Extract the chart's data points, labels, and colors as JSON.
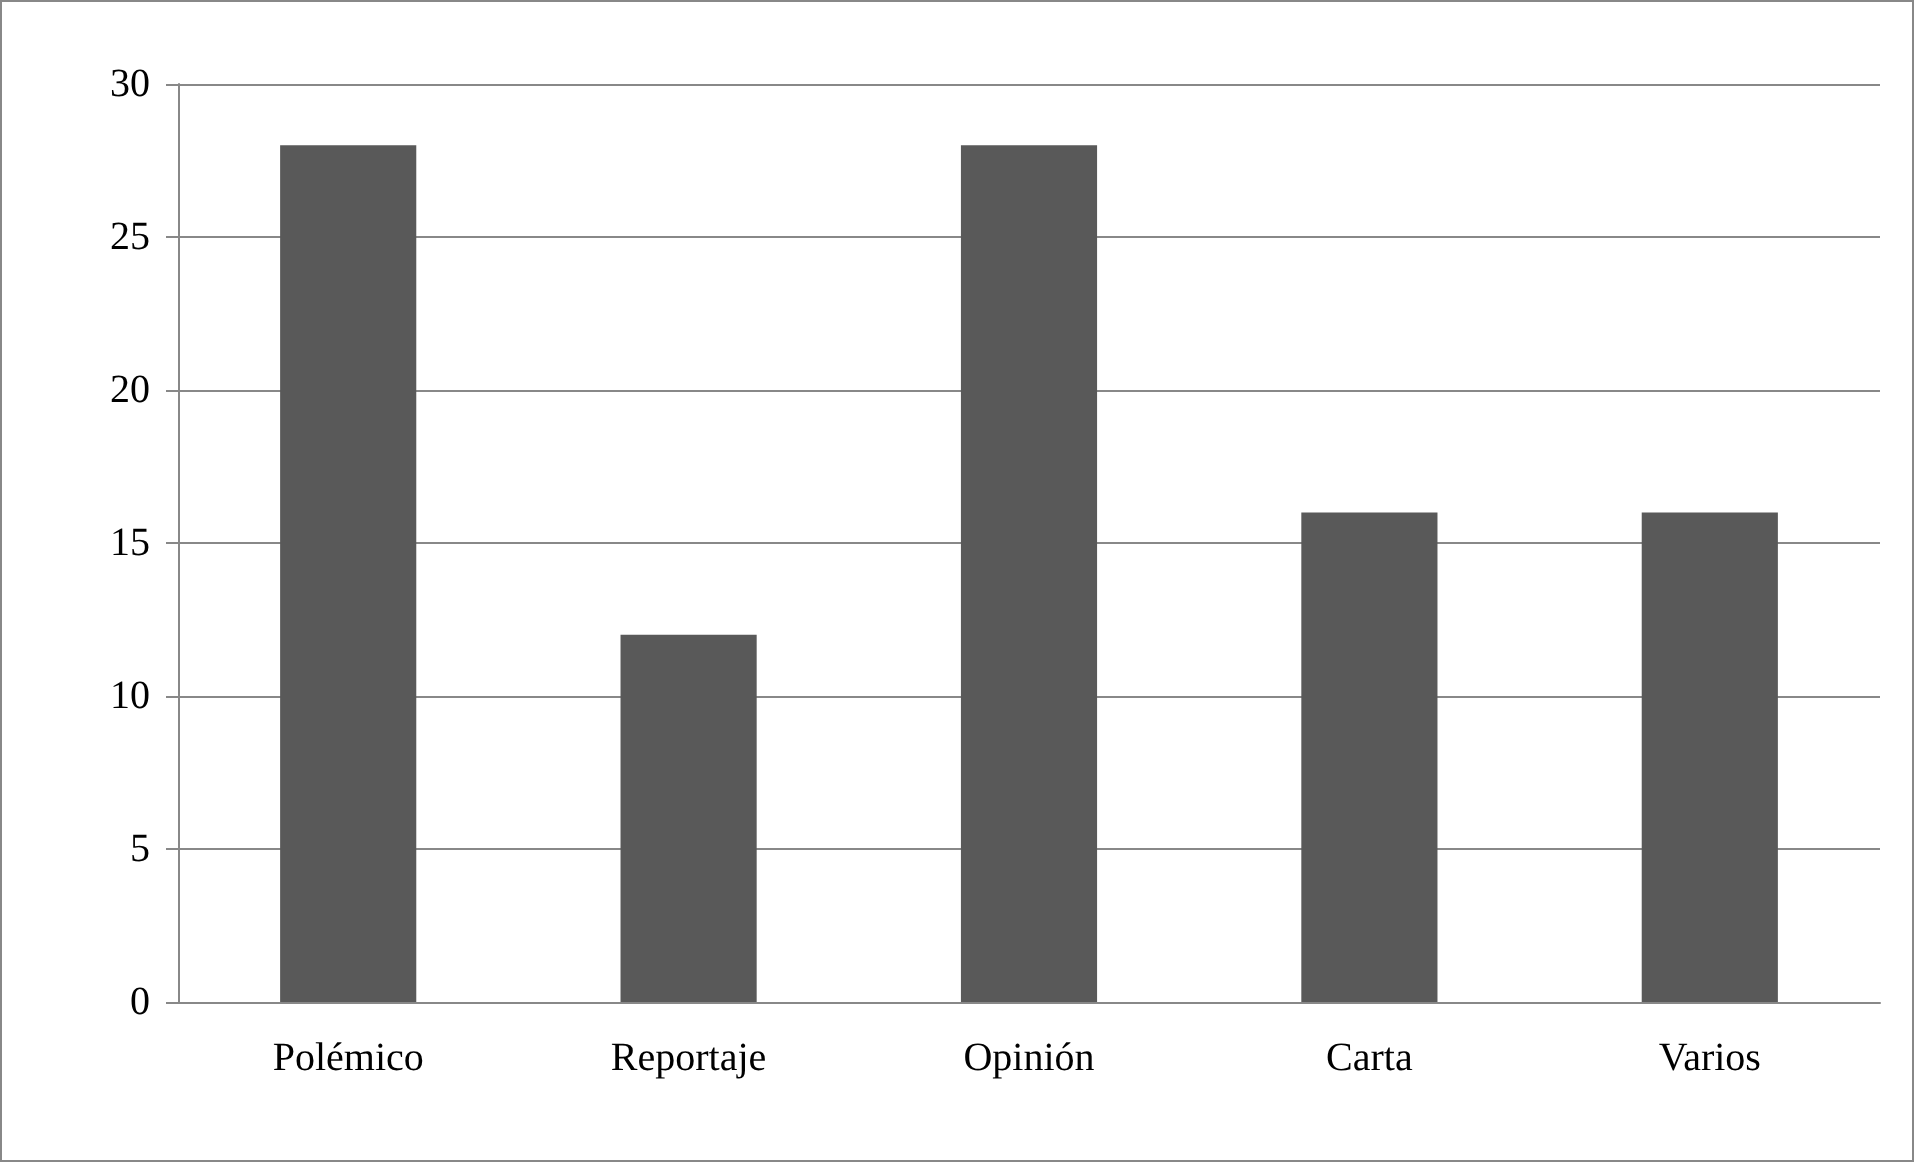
{
  "chart_data": {
    "type": "bar",
    "categories": [
      "Polémico",
      "Reportaje",
      "Opinión",
      "Carta",
      "Varios"
    ],
    "values": [
      28,
      12,
      28,
      16,
      16
    ],
    "color": "#595959",
    "ylim": [
      0,
      30
    ],
    "yticks": [
      0,
      5,
      10,
      15,
      20,
      25,
      30
    ],
    "grid": "y"
  }
}
